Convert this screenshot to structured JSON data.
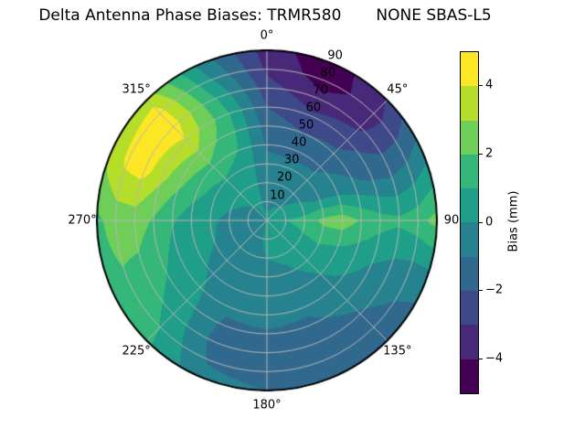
{
  "title": {
    "left": "Delta Antenna Phase Biases: TRMR580",
    "right": "NONE SBAS-L5"
  },
  "chart_data": {
    "type": "heatmap",
    "projection": "polar",
    "title": "Delta Antenna Phase Biases: TRMR580        NONE SBAS-L5",
    "theta_zero_location": "N",
    "theta_direction": "clockwise",
    "azimuth_ticks": [
      {
        "deg": 0,
        "label": "0°"
      },
      {
        "deg": 45,
        "label": "45°"
      },
      {
        "deg": 90,
        "label": "90"
      },
      {
        "deg": 135,
        "label": "135°"
      },
      {
        "deg": 180,
        "label": "180°"
      },
      {
        "deg": 225,
        "label": "225°"
      },
      {
        "deg": 270,
        "label": "270°"
      },
      {
        "deg": 315,
        "label": "315°"
      }
    ],
    "radial_ticks": [
      {
        "r": 10,
        "label": "10"
      },
      {
        "r": 20,
        "label": "20"
      },
      {
        "r": 30,
        "label": "30"
      },
      {
        "r": 40,
        "label": "40"
      },
      {
        "r": 50,
        "label": "50"
      },
      {
        "r": 60,
        "label": "60"
      },
      {
        "r": 70,
        "label": "70"
      },
      {
        "r": 80,
        "label": "80"
      },
      {
        "r": 90,
        "label": "90"
      }
    ],
    "radial_label_angle_deg": 22.5,
    "rmax": 90,
    "levels": [
      -5,
      -4,
      -3,
      -2,
      -1,
      0,
      1,
      2,
      3,
      4,
      5
    ],
    "palette": [
      "#440154",
      "#482878",
      "#3e4989",
      "#31688e",
      "#26828e",
      "#1f9e89",
      "#35b779",
      "#6ece58",
      "#b5de2b",
      "#fde725"
    ],
    "colorbar": {
      "label": "Bias (mm)",
      "vmin": -5,
      "vmax": 5,
      "tick_values": [
        4,
        2,
        0,
        -2,
        -4
      ],
      "tick_labels": [
        "4",
        "2",
        "0",
        "−2",
        "−4"
      ]
    },
    "grid": {
      "azimuth_deg": [
        0,
        22.5,
        45,
        67.5,
        90,
        112.5,
        135,
        157.5,
        180,
        202.5,
        225,
        247.5,
        270,
        292.5,
        315,
        337.5
      ],
      "radius": [
        0,
        10,
        20,
        30,
        40,
        50,
        60,
        70,
        80,
        90
      ],
      "bias_mm": [
        [
          0.1,
          -0.2,
          -0.5,
          -0.8,
          -1.1,
          -1.5,
          -2.0,
          -2.6,
          -3.2,
          -3.5
        ],
        [
          0.2,
          -0.1,
          -0.4,
          -0.8,
          -1.3,
          -2.0,
          -2.8,
          -3.7,
          -4.5,
          -4.7
        ],
        [
          0.3,
          0.0,
          -0.3,
          -0.7,
          -1.2,
          -1.8,
          -2.4,
          -3.2,
          -3.5,
          -2.9
        ],
        [
          0.5,
          0.3,
          0.1,
          -0.1,
          -0.4,
          -0.8,
          -1.2,
          -1.4,
          -1.0,
          -0.3
        ],
        [
          0.6,
          1.0,
          1.4,
          2.3,
          2.6,
          1.9,
          1.4,
          1.2,
          1.6,
          2.4
        ],
        [
          0.5,
          0.6,
          0.9,
          1.1,
          0.8,
          0.4,
          0.0,
          -0.4,
          -0.7,
          -0.8
        ],
        [
          0.3,
          0.3,
          0.3,
          0.2,
          0.0,
          -0.3,
          -0.7,
          -1.1,
          -1.4,
          -1.5
        ],
        [
          0.2,
          0.2,
          0.1,
          -0.1,
          -0.4,
          -0.8,
          -1.2,
          -1.5,
          -1.7,
          -1.6
        ],
        [
          0.1,
          0.1,
          0.0,
          -0.2,
          -0.4,
          -0.7,
          -1.1,
          -1.4,
          -1.3,
          -1.0
        ],
        [
          0.0,
          -0.1,
          -0.2,
          -0.3,
          -0.5,
          -0.8,
          -1.2,
          -1.4,
          -1.1,
          -0.7
        ],
        [
          -0.1,
          -0.1,
          -0.2,
          -0.2,
          -0.1,
          0.1,
          0.4,
          0.7,
          1.0,
          1.2
        ],
        [
          -0.2,
          -0.2,
          -0.1,
          0.0,
          0.2,
          0.6,
          1.2,
          1.7,
          1.9,
          1.6
        ],
        [
          -0.4,
          -0.4,
          -0.2,
          0.1,
          0.5,
          1.1,
          1.9,
          2.5,
          2.4,
          1.8
        ],
        [
          -0.3,
          -0.2,
          0.1,
          0.6,
          1.3,
          2.2,
          3.3,
          4.4,
          4.2,
          3.2
        ],
        [
          -0.2,
          0.0,
          0.3,
          0.9,
          1.7,
          2.8,
          3.9,
          4.5,
          4.4,
          3.6
        ],
        [
          0.0,
          0.1,
          0.3,
          0.6,
          1.0,
          1.4,
          1.5,
          1.0,
          0.2,
          -0.5
        ]
      ]
    },
    "style": {
      "grid_line_color": "#b6b6b6",
      "spine_color": "#000000",
      "background": "#ffffff"
    }
  }
}
